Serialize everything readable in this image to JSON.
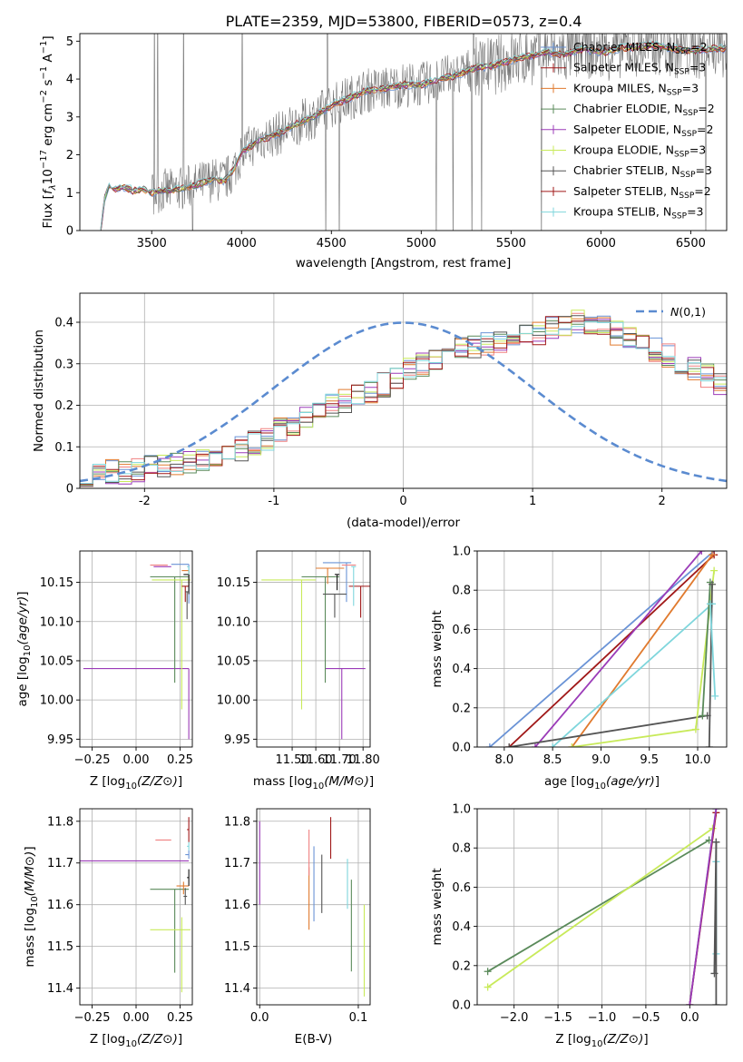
{
  "title": "PLATE=2359, MJD=53800, FIBERID=0573, z=0.4",
  "colors": [
    "#6a93d6",
    "#111111",
    "#e07a2e",
    "#5a8a5a",
    "#9b3bb8",
    "#c8ea5a",
    "#555555",
    "#a01818",
    "#7fd6dc"
  ],
  "series": [
    {
      "name": "Chabrier MILES, N_SSP=2"
    },
    {
      "name": "Salpeter MILES, N_SSP=3"
    },
    {
      "name": "Kroupa MILES, N_SSP=3"
    },
    {
      "name": "Chabrier ELODIE, N_SSP=2"
    },
    {
      "name": "Salpeter ELODIE, N_SSP=2"
    },
    {
      "name": "Kroupa ELODIE, N_SSP=3"
    },
    {
      "name": "Chabrier STELIB, N_SSP=3"
    },
    {
      "name": "Salpeter STELIB, N_SSP=2"
    },
    {
      "name": "Kroupa STELIB, N_SSP=3"
    }
  ],
  "chart_data": [
    {
      "id": "spectrum",
      "type": "line",
      "xlabel": "wavelength [Angstrom, rest frame]",
      "ylabel": "Flux [f_λ 10^-17 erg cm^-2 s^-1 A^-1]",
      "xlim": [
        3100,
        6700
      ],
      "ylim": [
        0,
        5.2
      ],
      "xticks": [
        3500,
        4000,
        4500,
        5000,
        5500,
        6000,
        6500
      ],
      "yticks": [
        0,
        1,
        2,
        3,
        4,
        5
      ],
      "grid": false,
      "legend": "upper-right",
      "continuum_x": [
        3215,
        3240,
        3260,
        3300,
        3350,
        3400,
        3450,
        3500,
        3550,
        3600,
        3650,
        3700,
        3750,
        3800,
        3850,
        3900,
        3950,
        4000,
        4100,
        4200,
        4300,
        4400,
        4500,
        4600,
        4700,
        4800,
        4900,
        5000,
        5100,
        5200,
        5300,
        5400,
        5500,
        5600,
        5700,
        5800,
        5900,
        6000,
        6100,
        6200,
        6300,
        6400,
        6500,
        6600
      ],
      "continuum_y": [
        0,
        0.9,
        1.15,
        1.1,
        1.15,
        1.05,
        1.1,
        1.0,
        1.05,
        1.05,
        1.1,
        1.15,
        1.2,
        1.3,
        1.35,
        1.3,
        1.55,
        2.05,
        2.4,
        2.55,
        2.8,
        3.0,
        3.3,
        3.5,
        3.7,
        3.75,
        3.85,
        3.85,
        4.0,
        4.1,
        4.3,
        4.35,
        4.5,
        4.6,
        4.7,
        4.65,
        4.8,
        4.7,
        4.8,
        4.85,
        4.9,
        4.8,
        4.75,
        4.8
      ]
    },
    {
      "id": "residuals",
      "type": "histogram",
      "xlabel": "(data-model)/error",
      "ylabel": "Normed distribution",
      "xlim": [
        -2.5,
        2.5
      ],
      "ylim": [
        0,
        0.47
      ],
      "xticks": [
        -2,
        -1,
        0,
        1,
        2
      ],
      "yticks": [
        0.0,
        0.1,
        0.2,
        0.3,
        0.4
      ],
      "grid": true,
      "legend": "upper-right",
      "gaussian_label": "N(0,1)",
      "bin_width": 0.1,
      "base_values": [
        0.03,
        0.035,
        0.04,
        0.04,
        0.045,
        0.05,
        0.05,
        0.055,
        0.06,
        0.07,
        0.075,
        0.08,
        0.095,
        0.11,
        0.12,
        0.14,
        0.155,
        0.17,
        0.19,
        0.2,
        0.21,
        0.22,
        0.235,
        0.25,
        0.27,
        0.285,
        0.3,
        0.315,
        0.325,
        0.335,
        0.34,
        0.35,
        0.355,
        0.36,
        0.37,
        0.375,
        0.385,
        0.39,
        0.4,
        0.395,
        0.385,
        0.375,
        0.36,
        0.35,
        0.335,
        0.32,
        0.305,
        0.29,
        0.27,
        0.255,
        0.24,
        0.225,
        0.21,
        0.195,
        0.18,
        0.165,
        0.15,
        0.14,
        0.13,
        0.12,
        0.11,
        0.1,
        0.09,
        0.085,
        0.08,
        0.075,
        0.07,
        0.065,
        0.06,
        0.055,
        0.05,
        0.05,
        0.045,
        0.045,
        0.04,
        0.04,
        0.04,
        0.04,
        0.04,
        0.035
      ]
    },
    {
      "id": "age_vs_Z",
      "type": "errorbar",
      "xlabel": "Z [log10(Z/Z⊙)]",
      "ylabel": "age [log10(age/yr)]",
      "xlim": [
        -0.32,
        0.32
      ],
      "ylim": [
        9.94,
        10.19
      ],
      "xticks": [
        -0.25,
        0.0,
        0.25
      ],
      "xticklabels": [
        "−0.25",
        "0.00",
        "0.25"
      ],
      "yticks": [
        9.95,
        10.0,
        10.05,
        10.1,
        10.15
      ],
      "yticklabels": [
        "9.95",
        "10.00",
        "10.05",
        "10.10",
        "10.15"
      ],
      "grid": true,
      "points": [
        {
          "c": 4,
          "x": 0.3,
          "y": 10.04,
          "xe": [
            0.6,
            0.0
          ],
          "ye": [
            0.09,
            0.0
          ]
        },
        {
          "c": 3,
          "x": 0.22,
          "y": 10.157,
          "xe": [
            0.14,
            0.08
          ],
          "ye": [
            0.135,
            0.0
          ]
        },
        {
          "c": 5,
          "x": 0.26,
          "y": 10.153,
          "xe": [
            0.17,
            0.05
          ],
          "ye": [
            0.165,
            0.0
          ]
        },
        {
          "c": 0,
          "x": 0.3,
          "y": 10.173,
          "xe": [
            0.1,
            0.0
          ],
          "ye": [
            0.05,
            0.0
          ]
        },
        {
          "c": 2,
          "x": 0.3,
          "y": 10.165,
          "xe": [
            0.04,
            0.0
          ],
          "ye": [
            0.02,
            0.0
          ]
        },
        {
          "c": 7,
          "x": 0.28,
          "y": 10.145,
          "xe": [
            0.02,
            0.02
          ],
          "ye": [
            0.02,
            0.0
          ]
        },
        {
          "c": 1,
          "x": 0.3,
          "y": 10.16,
          "xe": [
            0.03,
            0.0
          ],
          "ye": [
            0.025,
            0.0
          ]
        },
        {
          "c": 6,
          "x": 0.29,
          "y": 10.138,
          "xe": [
            0.01,
            0.01
          ],
          "ye": [
            0.035,
            0.0
          ]
        },
        {
          "c": 8,
          "x": 0.3,
          "y": 10.17,
          "xe": [
            0.01,
            0.0
          ],
          "ye": [
            0.01,
            0.0
          ]
        },
        {
          "c": 4,
          "x": 0.2,
          "y": 10.17,
          "xe": [
            0.1,
            0.0
          ],
          "ye": [
            0.0,
            0.0
          ]
        },
        {
          "c": 9,
          "x": 0.18,
          "y": 10.172,
          "xe": [
            0.1,
            0.0
          ],
          "ye": [
            0.0,
            0.0
          ]
        }
      ]
    },
    {
      "id": "age_vs_mass",
      "type": "errorbar",
      "xlabel": "mass [log10(M/M⊙)]",
      "ylabel": "",
      "xlim": [
        11.35,
        11.83
      ],
      "ylim": [
        9.94,
        10.19
      ],
      "xticks": [
        11.5,
        11.6,
        11.7,
        11.8
      ],
      "xticklabels": [
        "11.50",
        "11.60",
        "11.70",
        "11.80"
      ],
      "yticks": [
        9.95,
        10.0,
        10.05,
        10.1,
        10.15
      ],
      "yticklabels": [
        "9.95",
        "10.00",
        "10.05",
        "10.10",
        "10.15"
      ],
      "grid": true,
      "points": [
        {
          "c": 4,
          "x": 11.71,
          "y": 10.04,
          "xe": [
            0.07,
            0.1
          ],
          "ye": [
            0.09,
            0.0
          ]
        },
        {
          "c": 3,
          "x": 11.64,
          "y": 10.157,
          "xe": [
            0.1,
            0.06
          ],
          "ye": [
            0.135,
            0.0
          ]
        },
        {
          "c": 5,
          "x": 11.54,
          "y": 10.153,
          "xe": [
            0.17,
            0.06
          ],
          "ye": [
            0.165,
            0.0
          ]
        },
        {
          "c": 0,
          "x": 11.73,
          "y": 10.175,
          "xe": [
            0.1,
            0.02
          ],
          "ye": [
            0.05,
            0.0
          ]
        },
        {
          "c": 2,
          "x": 11.65,
          "y": 10.168,
          "xe": [
            0.05,
            0.07
          ],
          "ye": [
            0.02,
            0.0
          ]
        },
        {
          "c": 7,
          "x": 11.79,
          "y": 10.145,
          "xe": [
            0.05,
            0.04
          ],
          "ye": [
            0.04,
            0.0
          ]
        },
        {
          "c": 1,
          "x": 11.69,
          "y": 10.16,
          "xe": [
            0.01,
            0.01
          ],
          "ye": [
            0.02,
            0.0
          ]
        },
        {
          "c": 6,
          "x": 11.68,
          "y": 10.135,
          "xe": [
            0.05,
            0.05
          ],
          "ye": [
            0.03,
            0.0
          ]
        },
        {
          "c": 8,
          "x": 11.76,
          "y": 10.17,
          "xe": [
            0.01,
            0.01
          ],
          "ye": [
            0.05,
            0.0
          ]
        },
        {
          "c": 9,
          "x": 11.76,
          "y": 10.172,
          "xe": [
            0.05,
            0.01
          ],
          "ye": [
            0.0,
            0.0
          ]
        }
      ]
    },
    {
      "id": "massweight_vs_age",
      "type": "line",
      "xlabel": "age [log10(age/yr)]",
      "ylabel": "mass weight",
      "xlim": [
        7.72,
        10.3
      ],
      "ylim": [
        0,
        1.0
      ],
      "xticks": [
        8.0,
        8.5,
        9.0,
        9.5,
        10.0
      ],
      "xticklabels": [
        "8.0",
        "8.5",
        "9.0",
        "9.5",
        "10.0"
      ],
      "yticks": [
        0,
        0.2,
        0.4,
        0.6,
        0.8,
        1.0
      ],
      "yticklabels": [
        "0.0",
        "0.2",
        "0.4",
        "0.6",
        "0.8",
        "1.0"
      ],
      "grid": true,
      "lines": [
        {
          "c": 0,
          "x": [
            7.85,
            10.17
          ],
          "y": [
            0.0,
            1.0
          ]
        },
        {
          "c": 7,
          "x": 8.05,
          "y": 0.0,
          "x2": 10.17,
          "y2": 0.98
        },
        {
          "c": 4,
          "x": [
            8.32,
            10.04
          ],
          "y": [
            0.0,
            1.0
          ]
        },
        {
          "c": 2,
          "x": [
            8.7,
            10.15
          ],
          "y": [
            0.0,
            0.98
          ]
        },
        {
          "c": 8,
          "x": [
            8.5,
            10.15
          ],
          "y": [
            0.0,
            0.73
          ]
        },
        {
          "c": 6,
          "x": [
            8.05,
            10.1
          ],
          "y": [
            0.0,
            0.16
          ]
        },
        {
          "c": 5,
          "x": [
            8.7,
            9.98,
            10.17
          ],
          "y": [
            0.0,
            0.09,
            0.9
          ]
        },
        {
          "c": 3,
          "x": [
            10.05,
            10.13
          ],
          "y": [
            0.16,
            0.84
          ]
        },
        {
          "c": 1,
          "x": [
            10.12,
            10.15
          ],
          "y": [
            0.0,
            0.83
          ]
        },
        {
          "c": 9,
          "x": [
            10.13,
            10.18
          ],
          "y": [
            0.73,
            0.26
          ]
        }
      ]
    },
    {
      "id": "mass_vs_Z",
      "type": "errorbar",
      "xlabel": "Z [log10(Z/Z⊙)]",
      "ylabel": "mass [log10(M/M⊙)]",
      "xlim": [
        -0.32,
        0.32
      ],
      "ylim": [
        11.36,
        11.83
      ],
      "xticks": [
        -0.25,
        0.0,
        0.25
      ],
      "xticklabels": [
        "−0.25",
        "0.00",
        "0.25"
      ],
      "yticks": [
        11.4,
        11.5,
        11.6,
        11.7,
        11.8
      ],
      "yticklabels": [
        "11.4",
        "11.5",
        "11.6",
        "11.7",
        "11.8"
      ],
      "grid": true,
      "points": [
        {
          "c": 4,
          "x": 0.3,
          "y": 11.705,
          "xe": [
            0.62,
            0.0
          ],
          "ye": [
            0.0,
            0.0
          ]
        },
        {
          "c": 3,
          "x": 0.22,
          "y": 11.637,
          "xe": [
            0.14,
            0.08
          ],
          "ye": [
            0.2,
            0.0
          ]
        },
        {
          "c": 5,
          "x": 0.26,
          "y": 11.54,
          "xe": [
            0.18,
            0.05
          ],
          "ye": [
            0.15,
            0.03
          ]
        },
        {
          "c": 0,
          "x": 0.3,
          "y": 11.72,
          "xe": [
            0.02,
            0.0
          ],
          "ye": [
            0.01,
            0.01
          ]
        },
        {
          "c": 2,
          "x": 0.27,
          "y": 11.645,
          "xe": [
            0.04,
            0.03
          ],
          "ye": [
            0.02,
            0.01
          ]
        },
        {
          "c": 7,
          "x": 0.3,
          "y": 11.78,
          "xe": [
            0.01,
            0.0
          ],
          "ye": [
            0.03,
            0.03
          ]
        },
        {
          "c": 1,
          "x": 0.3,
          "y": 11.665,
          "xe": [
            0.01,
            0.0
          ],
          "ye": [
            0.02,
            0.02
          ]
        },
        {
          "c": 6,
          "x": 0.28,
          "y": 11.62,
          "xe": [
            0.01,
            0.01
          ],
          "ye": [
            0.02,
            0.02
          ]
        },
        {
          "c": 8,
          "x": 0.3,
          "y": 11.74,
          "xe": [
            0.01,
            0.0
          ],
          "ye": [
            0.01,
            0.01
          ]
        },
        {
          "c": 9,
          "x": 0.2,
          "y": 11.755,
          "xe": [
            0.09,
            0.0
          ],
          "ye": [
            0.0,
            0.0
          ]
        }
      ]
    },
    {
      "id": "mass_vs_ebv",
      "type": "errorbar",
      "xlabel": "E(B-V)",
      "ylabel": "",
      "xlim": [
        -0.003,
        0.112
      ],
      "ylim": [
        11.36,
        11.83
      ],
      "xticks": [
        0.0,
        0.1
      ],
      "xticklabels": [
        "0.0",
        "0.1"
      ],
      "yticks": [
        11.4,
        11.5,
        11.6,
        11.7,
        11.8
      ],
      "yticklabels": [
        "11.4",
        "11.5",
        "11.6",
        "11.7",
        "11.8"
      ],
      "grid": true,
      "points": [
        {
          "c": 4,
          "x": 0.0,
          "y": 11.71,
          "ye": [
            0.11,
            0.09
          ]
        },
        {
          "c": 2,
          "x": 0.05,
          "y": 11.6,
          "ye": [
            0.06,
            0.09
          ]
        },
        {
          "c": 9,
          "x": 0.05,
          "y": 11.72,
          "ye": [
            0.05,
            0.06
          ]
        },
        {
          "c": 0,
          "x": 0.055,
          "y": 11.68,
          "ye": [
            0.12,
            0.06
          ]
        },
        {
          "c": 6,
          "x": 0.063,
          "y": 11.65,
          "ye": [
            0.07,
            0.07
          ]
        },
        {
          "c": 7,
          "x": 0.072,
          "y": 11.76,
          "ye": [
            0.05,
            0.05
          ]
        },
        {
          "c": 8,
          "x": 0.089,
          "y": 11.65,
          "ye": [
            0.06,
            0.06
          ]
        },
        {
          "c": 3,
          "x": 0.093,
          "y": 11.52,
          "ye": [
            0.08,
            0.14
          ]
        },
        {
          "c": 5,
          "x": 0.106,
          "y": 11.48,
          "ye": [
            0.1,
            0.12
          ]
        }
      ]
    },
    {
      "id": "massweight_vs_Z",
      "type": "line",
      "xlabel": "Z [log10(Z/Z⊙)]",
      "ylabel": "mass weight",
      "xlim": [
        -2.42,
        0.42
      ],
      "ylim": [
        0,
        1.0
      ],
      "xticks": [
        -2.0,
        -1.5,
        -1.0,
        -0.5,
        0.0
      ],
      "xticklabels": [
        "−2.0",
        "−1.5",
        "−1.0",
        "−0.5",
        "0.0"
      ],
      "yticks": [
        0,
        0.2,
        0.4,
        0.6,
        0.8,
        1.0
      ],
      "yticklabels": [
        "0.0",
        "0.2",
        "0.4",
        "0.6",
        "0.8",
        "1.0"
      ],
      "grid": true,
      "lines": [
        {
          "c": 3,
          "x": [
            -2.3,
            0.22
          ],
          "y": [
            0.17,
            0.84
          ]
        },
        {
          "c": 5,
          "x": [
            -2.3,
            0.26
          ],
          "y": [
            0.09,
            0.9
          ]
        },
        {
          "c": 0,
          "x": [
            0.0,
            0.3
          ],
          "y": [
            0.0,
            1.0
          ]
        },
        {
          "c": 7,
          "x": [
            0.0,
            0.3
          ],
          "y": [
            0.0,
            0.98
          ]
        },
        {
          "c": 4,
          "x": [
            0.0,
            0.3
          ],
          "y": [
            0.0,
            1.0
          ]
        },
        {
          "c": 8,
          "x": [
            0.3,
            0.3
          ],
          "y": [
            0.26,
            0.73
          ]
        },
        {
          "c": 6,
          "x": [
            0.28,
            0.3
          ],
          "y": [
            0.16,
            0.83
          ]
        },
        {
          "c": 1,
          "x": [
            0.3,
            0.3
          ],
          "y": [
            0.0,
            0.83
          ]
        }
      ]
    }
  ]
}
